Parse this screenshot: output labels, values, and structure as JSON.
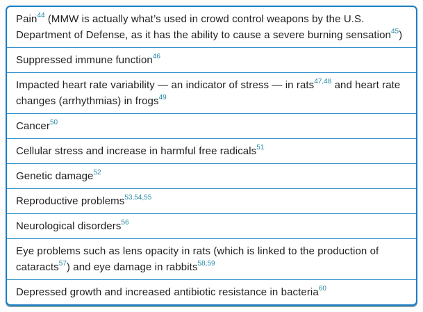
{
  "colors": {
    "border_blue": "#1b7ec2",
    "divider_blue": "#2f8fcc",
    "body_text": "#212121",
    "footnote_teal": "#2186a5",
    "card_background": "#ffffff",
    "page_background": "#fdfdfe"
  },
  "table": {
    "rows": [
      {
        "segments": [
          {
            "text": "Pain"
          },
          {
            "ref": "44"
          },
          {
            "text": " (MMW is actually what’s used in crowd control weapons by the U.S. Department of Defense, as it has the ability to cause a severe burning sensation"
          },
          {
            "ref": "45"
          },
          {
            "text": ")"
          }
        ]
      },
      {
        "segments": [
          {
            "text": "Suppressed immune function"
          },
          {
            "ref": "46"
          }
        ]
      },
      {
        "segments": [
          {
            "text": "Impacted heart rate variability — an indicator of stress — in rats"
          },
          {
            "ref": "47,48"
          },
          {
            "text": " and heart rate changes (arrhythmias) in frogs"
          },
          {
            "ref": "49"
          }
        ]
      },
      {
        "segments": [
          {
            "text": "Cancer"
          },
          {
            "ref": "50"
          }
        ]
      },
      {
        "segments": [
          {
            "text": "Cellular stress and increase in harmful free radicals"
          },
          {
            "ref": "51"
          }
        ]
      },
      {
        "segments": [
          {
            "text": "Genetic damage"
          },
          {
            "ref": "52"
          }
        ]
      },
      {
        "segments": [
          {
            "text": "Reproductive problems"
          },
          {
            "ref": "53,54,55"
          }
        ]
      },
      {
        "segments": [
          {
            "text": "Neurological disorders"
          },
          {
            "ref": "56"
          }
        ]
      },
      {
        "segments": [
          {
            "text": "Eye problems such as lens opacity in rats (which is linked to the production of cataracts"
          },
          {
            "ref": "57"
          },
          {
            "text": ") and eye damage in rabbits"
          },
          {
            "ref": "58,59"
          }
        ]
      },
      {
        "segments": [
          {
            "text": "Depressed growth and increased antibiotic resistance in bacteria"
          },
          {
            "ref": "60"
          }
        ]
      }
    ]
  }
}
